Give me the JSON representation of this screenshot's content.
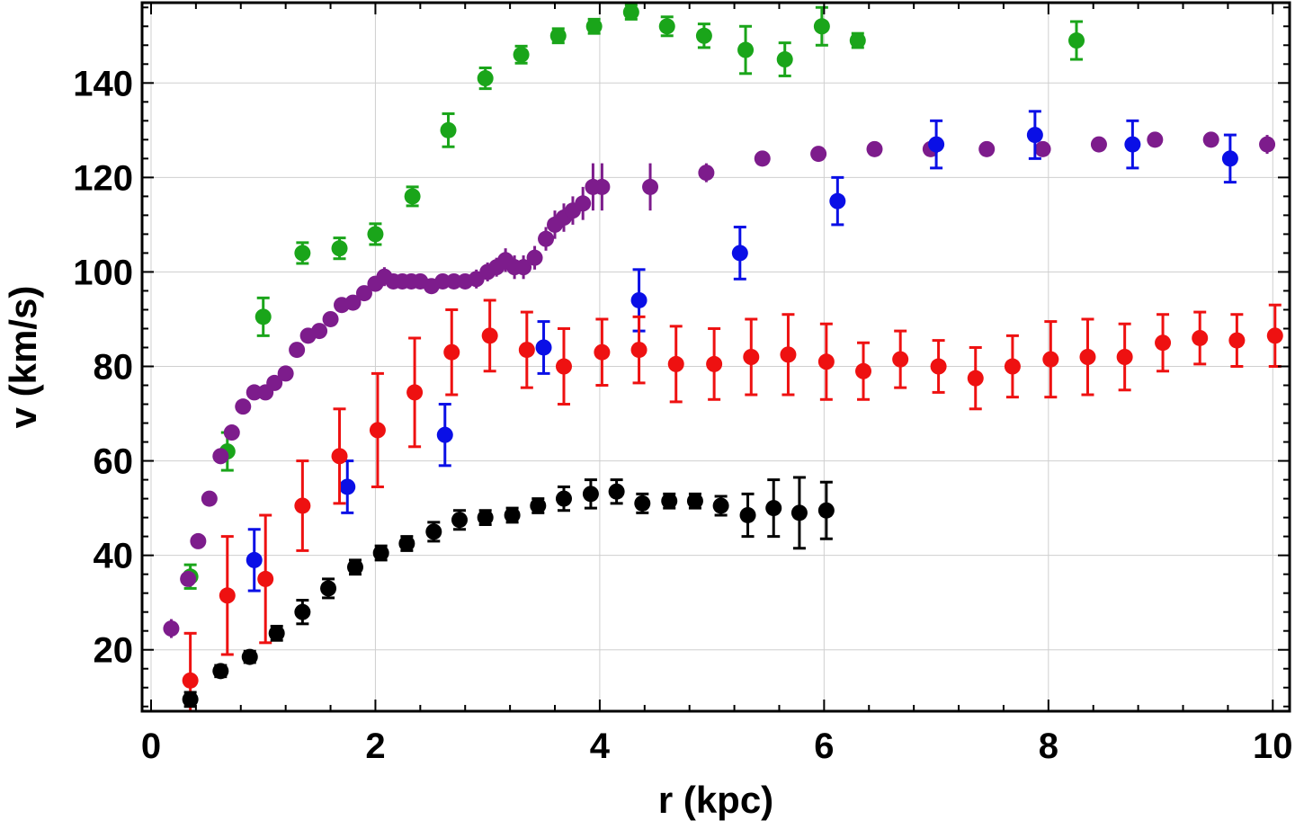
{
  "chart_data": {
    "type": "scatter",
    "title": "",
    "xlabel": "r (kpc)",
    "ylabel": "v (km/s)",
    "xlim": [
      -0.08,
      10.15
    ],
    "ylim": [
      7,
      157
    ],
    "grid": true,
    "x_ticks": [
      0,
      2,
      4,
      6,
      8,
      10
    ],
    "x_tick_labels": [
      "0",
      "2",
      "4",
      "6",
      "8",
      "10"
    ],
    "y_ticks": [
      20,
      40,
      60,
      80,
      100,
      120,
      140
    ],
    "y_tick_labels": [
      "20",
      "40",
      "60",
      "80",
      "100",
      "120",
      "140"
    ],
    "series": [
      {
        "name": "green",
        "color": "#1aa51a",
        "points": [
          [
            0.35,
            35.5,
            2.5
          ],
          [
            0.68,
            62.0,
            4.0
          ],
          [
            1.0,
            90.5,
            4.0
          ],
          [
            1.35,
            104.0,
            2.2
          ],
          [
            1.68,
            105.0,
            2.2
          ],
          [
            2.0,
            108.0,
            2.2
          ],
          [
            2.33,
            116.0,
            2.0
          ],
          [
            2.65,
            130.0,
            3.5
          ],
          [
            2.98,
            141.0,
            2.2
          ],
          [
            3.3,
            146.0,
            1.8
          ],
          [
            3.63,
            150.0,
            1.5
          ],
          [
            3.95,
            152.0,
            1.5
          ],
          [
            4.28,
            155.0,
            1.5
          ],
          [
            4.6,
            152.0,
            2.0
          ],
          [
            4.93,
            150.0,
            2.5
          ],
          [
            5.3,
            147.0,
            5.0
          ],
          [
            5.65,
            145.0,
            3.5
          ],
          [
            5.98,
            152.0,
            4.0
          ],
          [
            6.3,
            149.0,
            1.5
          ],
          [
            8.25,
            149.0,
            4.0
          ]
        ]
      },
      {
        "name": "purple",
        "color": "#7d1c8c",
        "points": [
          [
            0.18,
            24.5,
            2.0
          ],
          [
            0.33,
            35.0,
            1.5
          ],
          [
            0.42,
            43.0,
            1.2
          ],
          [
            0.52,
            52.0,
            1.2
          ],
          [
            0.62,
            61.0,
            1.5
          ],
          [
            0.72,
            66.0,
            1.5
          ],
          [
            0.82,
            71.5,
            1.5
          ],
          [
            0.92,
            74.5,
            1.5
          ],
          [
            1.02,
            74.5,
            1.5
          ],
          [
            1.1,
            76.5,
            1.5
          ],
          [
            1.2,
            78.5,
            1.5
          ],
          [
            1.3,
            83.5,
            1.5
          ],
          [
            1.4,
            86.5,
            1.5
          ],
          [
            1.5,
            87.5,
            1.5
          ],
          [
            1.6,
            90.0,
            1.5
          ],
          [
            1.7,
            93.0,
            1.5
          ],
          [
            1.8,
            93.5,
            1.5
          ],
          [
            1.9,
            95.5,
            1.5
          ],
          [
            2.0,
            97.5,
            1.5
          ],
          [
            2.08,
            99.0,
            2.0
          ],
          [
            2.16,
            98.0,
            1.5
          ],
          [
            2.24,
            98.0,
            1.5
          ],
          [
            2.32,
            98.0,
            1.5
          ],
          [
            2.4,
            98.0,
            1.5
          ],
          [
            2.5,
            97.0,
            1.5
          ],
          [
            2.6,
            98.0,
            1.5
          ],
          [
            2.7,
            98.0,
            1.5
          ],
          [
            2.8,
            98.0,
            1.5
          ],
          [
            2.9,
            98.5,
            2.0
          ],
          [
            3.0,
            100.0,
            2.0
          ],
          [
            3.08,
            101.0,
            2.0
          ],
          [
            3.16,
            102.5,
            2.5
          ],
          [
            3.24,
            101.0,
            2.5
          ],
          [
            3.32,
            101.0,
            2.5
          ],
          [
            3.42,
            103.0,
            2.5
          ],
          [
            3.52,
            107.0,
            2.5
          ],
          [
            3.6,
            110.0,
            3.0
          ],
          [
            3.68,
            111.5,
            3.0
          ],
          [
            3.76,
            113.0,
            3.0
          ],
          [
            3.85,
            114.5,
            3.5
          ],
          [
            3.94,
            118.0,
            5.0
          ],
          [
            4.02,
            118.0,
            5.0
          ],
          [
            4.45,
            118.0,
            5.0
          ],
          [
            4.95,
            121.0,
            2.0
          ],
          [
            5.45,
            124.0,
            1.5
          ],
          [
            5.95,
            125.0,
            1.5
          ],
          [
            6.45,
            126.0,
            1.5
          ],
          [
            6.95,
            126.0,
            1.5
          ],
          [
            7.45,
            126.0,
            1.5
          ],
          [
            7.95,
            126.0,
            1.5
          ],
          [
            8.45,
            127.0,
            1.5
          ],
          [
            8.95,
            128.0,
            1.5
          ],
          [
            9.45,
            128.0,
            1.5
          ],
          [
            9.95,
            127.0,
            2.0
          ]
        ]
      },
      {
        "name": "blue",
        "color": "#0a0fe6",
        "points": [
          [
            0.92,
            39.0,
            6.5
          ],
          [
            1.75,
            54.5,
            5.5
          ],
          [
            2.62,
            65.5,
            6.5
          ],
          [
            3.5,
            84.0,
            5.5
          ],
          [
            4.35,
            94.0,
            6.5
          ],
          [
            5.25,
            104.0,
            5.5
          ],
          [
            6.12,
            115.0,
            5.0
          ],
          [
            7.0,
            127.0,
            5.0
          ],
          [
            7.88,
            129.0,
            5.0
          ],
          [
            8.75,
            127.0,
            5.0
          ],
          [
            9.62,
            124.0,
            5.0
          ]
        ]
      },
      {
        "name": "red",
        "color": "#ee1111",
        "points": [
          [
            0.35,
            13.5,
            10.0
          ],
          [
            0.68,
            31.5,
            12.5
          ],
          [
            1.02,
            35.0,
            13.5
          ],
          [
            1.35,
            50.5,
            9.5
          ],
          [
            1.68,
            61.0,
            10.0
          ],
          [
            2.02,
            66.5,
            12.0
          ],
          [
            2.35,
            74.5,
            11.5
          ],
          [
            2.68,
            83.0,
            9.0
          ],
          [
            3.02,
            86.5,
            7.5
          ],
          [
            3.35,
            83.5,
            8.0
          ],
          [
            3.68,
            80.0,
            8.0
          ],
          [
            4.02,
            83.0,
            7.0
          ],
          [
            4.35,
            83.5,
            7.0
          ],
          [
            4.68,
            80.5,
            8.0
          ],
          [
            5.02,
            80.5,
            7.5
          ],
          [
            5.35,
            82.0,
            8.0
          ],
          [
            5.68,
            82.5,
            8.5
          ],
          [
            6.02,
            81.0,
            8.0
          ],
          [
            6.35,
            79.0,
            6.0
          ],
          [
            6.68,
            81.5,
            6.0
          ],
          [
            7.02,
            80.0,
            5.5
          ],
          [
            7.35,
            77.5,
            6.5
          ],
          [
            7.68,
            80.0,
            6.5
          ],
          [
            8.02,
            81.5,
            8.0
          ],
          [
            8.35,
            82.0,
            8.0
          ],
          [
            8.68,
            82.0,
            7.0
          ],
          [
            9.02,
            85.0,
            6.0
          ],
          [
            9.35,
            86.0,
            5.5
          ],
          [
            9.68,
            85.5,
            5.5
          ],
          [
            10.02,
            86.5,
            6.5
          ]
        ]
      },
      {
        "name": "black",
        "color": "#000000",
        "points": [
          [
            0.35,
            9.5,
            1.5
          ],
          [
            0.62,
            15.5,
            1.2
          ],
          [
            0.88,
            18.5,
            1.2
          ],
          [
            1.12,
            23.5,
            1.5
          ],
          [
            1.35,
            28.0,
            2.5
          ],
          [
            1.58,
            33.0,
            2.0
          ],
          [
            1.82,
            37.5,
            1.5
          ],
          [
            2.05,
            40.5,
            1.5
          ],
          [
            2.28,
            42.5,
            1.5
          ],
          [
            2.52,
            45.0,
            2.0
          ],
          [
            2.75,
            47.5,
            2.0
          ],
          [
            2.98,
            48.0,
            1.5
          ],
          [
            3.22,
            48.5,
            1.5
          ],
          [
            3.45,
            50.5,
            1.5
          ],
          [
            3.68,
            52.0,
            2.5
          ],
          [
            3.92,
            53.0,
            3.0
          ],
          [
            4.15,
            53.5,
            2.5
          ],
          [
            4.38,
            51.0,
            2.0
          ],
          [
            4.62,
            51.5,
            1.5
          ],
          [
            4.85,
            51.5,
            1.5
          ],
          [
            5.08,
            50.5,
            2.0
          ],
          [
            5.32,
            48.5,
            4.5
          ],
          [
            5.55,
            50.0,
            6.0
          ],
          [
            5.78,
            49.0,
            7.5
          ],
          [
            6.02,
            49.5,
            6.0
          ]
        ]
      }
    ]
  }
}
